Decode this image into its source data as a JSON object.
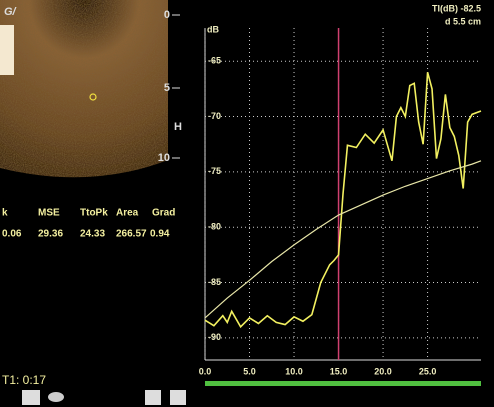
{
  "chart_data": {
    "type": "line",
    "y_label": "dB",
    "annotations": [
      "TI(dB) -82.5",
      "d 5.5 cm"
    ],
    "xlim": [
      0,
      31
    ],
    "ylim": [
      -92,
      -62
    ],
    "xticks": [
      {
        "value": 0,
        "label": "0.0"
      },
      {
        "value": 5,
        "label": "5.0"
      },
      {
        "value": 10,
        "label": "10.0"
      },
      {
        "value": 15,
        "label": "15.0"
      },
      {
        "value": 20,
        "label": "20.0"
      },
      {
        "value": 25,
        "label": "25.0"
      }
    ],
    "yticks": [
      -65,
      -70,
      -75,
      -80,
      -85,
      -90
    ],
    "grid": true,
    "cursor_x": 15,
    "series": [
      {
        "color": "#f2f060",
        "x": [
          0,
          1,
          2,
          2.5,
          3,
          4,
          5,
          6,
          7,
          8,
          9,
          10,
          11,
          12,
          13,
          14,
          14.5,
          15,
          15.5,
          16,
          17,
          18,
          19,
          20,
          21,
          21.5,
          22,
          22.5,
          23,
          23.5,
          24,
          24.5,
          25,
          25.5,
          26,
          26.5,
          27,
          27.5,
          28,
          28.5,
          29,
          29.5,
          30,
          31
        ],
        "values": [
          -88.4,
          -88.9,
          -88.0,
          -88.6,
          -87.6,
          -89.0,
          -88.2,
          -88.7,
          -88.0,
          -88.6,
          -88.8,
          -88.1,
          -88.5,
          -87.9,
          -85.0,
          -83.4,
          -83.0,
          -82.5,
          -77.0,
          -72.6,
          -72.8,
          -71.6,
          -72.4,
          -71.2,
          -74.0,
          -70.0,
          -69.2,
          -70.0,
          -67.2,
          -67.0,
          -70.5,
          -72.5,
          -66.0,
          -67.5,
          -73.8,
          -72.0,
          -68.0,
          -71.0,
          -71.8,
          -73.5,
          -76.5,
          -70.5,
          -69.8,
          -69.5
        ]
      },
      {
        "color": "#e8e6a8",
        "x": [
          0,
          2.5,
          5,
          7.5,
          10,
          12.5,
          15,
          17.5,
          20,
          22.5,
          25,
          27.5,
          30,
          31
        ],
        "values": [
          -88.2,
          -86.4,
          -84.8,
          -83.1,
          -81.6,
          -80.2,
          -78.9,
          -78.0,
          -77.1,
          -76.3,
          -75.6,
          -74.9,
          -74.3,
          -74.0
        ]
      }
    ]
  },
  "image": {
    "depth_labels": [
      "0",
      "5",
      "10"
    ],
    "marker": "H"
  },
  "table": {
    "header": [
      "k",
      "MSE",
      "TtoPk",
      "Area",
      "Grad"
    ],
    "rows": [
      [
        "0.06",
        "29.36",
        "24.33",
        "266.57",
        "0.94"
      ]
    ]
  },
  "timer": "T1: 0:17"
}
